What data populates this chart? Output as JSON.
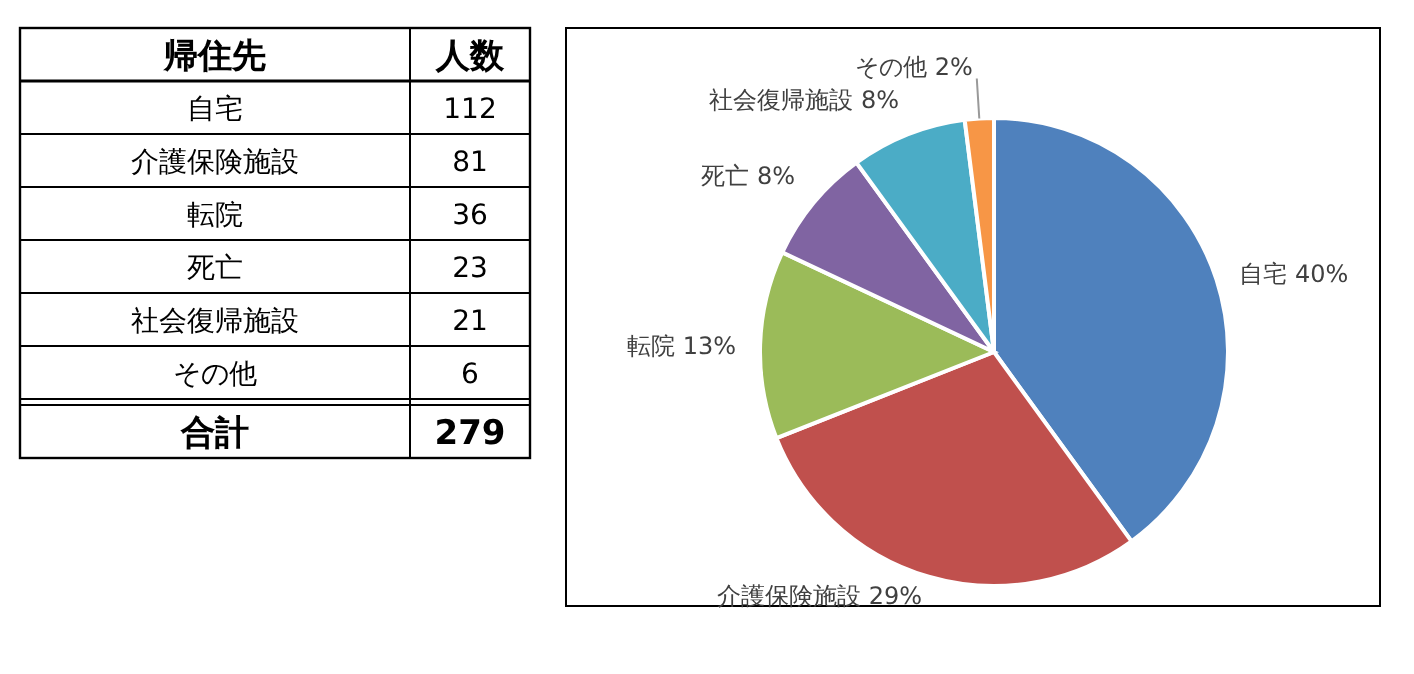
{
  "chart_data": [
    {
      "type": "other",
      "annotations": [
        "帰住先",
        "人数",
        "自宅",
        "112",
        "介護保険施設",
        "81",
        "転院",
        "36",
        "死亡",
        "23",
        "社会復帰施設",
        "21",
        "その他",
        "6",
        "合計",
        "279"
      ]
    },
    {
      "type": "pie",
      "categories": [
        "自宅",
        "介護保険施設",
        "転院",
        "死亡",
        "社会復帰施設",
        "その他"
      ],
      "values": [
        40,
        29,
        13,
        8,
        8,
        2
      ],
      "value_labels": [
        "40%",
        "29%",
        "13%",
        "8%",
        "8%",
        "2%"
      ],
      "colors": [
        "#4f81bd",
        "#c0504d",
        "#9bbb59",
        "#8064a2",
        "#4bacc6",
        "#f79646"
      ]
    }
  ]
}
